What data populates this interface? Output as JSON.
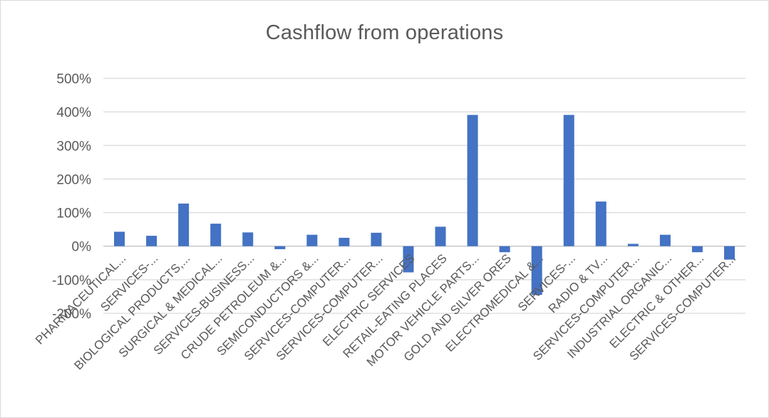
{
  "chart_data": {
    "type": "bar",
    "title": "Cashflow from operations",
    "xlabel": "",
    "ylabel": "",
    "ylim": [
      -200,
      500
    ],
    "yticks": [
      500,
      400,
      300,
      200,
      100,
      0,
      -100,
      -200
    ],
    "ytick_labels": [
      "500%",
      "400%",
      "300%",
      "200%",
      "100%",
      "0%",
      "-100%",
      "-200%"
    ],
    "grid": true,
    "legend": "none",
    "bar_color": "#4472c4",
    "categories": [
      "PHARMACEUTICAL...",
      "SERVICES-...",
      "BIOLOGICAL PRODUCTS,...",
      "SURGICAL & MEDICAL...",
      "SERVICES-BUSINESS...",
      "CRUDE PETROLEUM &...",
      "SEMICONDUCTORS &...",
      "SERVICES-COMPUTER...",
      "SERVICES-COMPUTER...",
      "ELECTRIC SERVICES",
      "RETAIL-EATING PLACES",
      "MOTOR VEHICLE PARTS...",
      "GOLD AND SILVER ORES",
      "ELECTROMEDICAL &...",
      "SERVICES-...",
      "RADIO & TV...",
      "SERVICES-COMPUTER...",
      "INDUSTRIAL ORGANIC...",
      "ELECTRIC & OTHER...",
      "SERVICES-COMPUTER..."
    ],
    "values": [
      43,
      31,
      127,
      67,
      41,
      -9,
      34,
      25,
      40,
      -78,
      58,
      391,
      -18,
      -145,
      391,
      133,
      7,
      34,
      -18,
      -40
    ]
  }
}
